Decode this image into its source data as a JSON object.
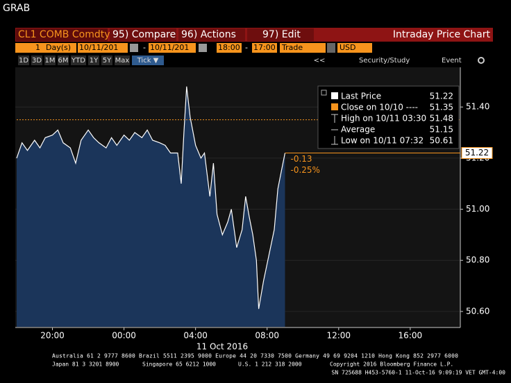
{
  "header": {
    "title": "GRAB"
  },
  "toolbar": {
    "security": "CL1 COMB Comdty",
    "buttons": [
      "95) Compare",
      "96) Actions",
      "97) Edit"
    ],
    "function": "Intraday Price Chart",
    "ranges": [
      "1D",
      "3D",
      "1M",
      "6M",
      "YTD",
      "1Y",
      "5Y",
      "Max",
      "Tick ▼"
    ],
    "tools": [
      "<<",
      "Security/Study",
      "Event"
    ]
  },
  "settings": {
    "period": "1",
    "period_unit": "Day(s)",
    "start_date": "10/11/201",
    "separator": "-",
    "end_date": "10/11/201",
    "start_time": "18:00",
    "end_time": "17:00",
    "event_type": "Trade",
    "currency": "USD"
  },
  "chart_data": {
    "type": "line",
    "x": [
      0,
      0.3,
      0.6,
      1,
      1.3,
      1.6,
      2,
      2.3,
      2.6,
      3,
      3.3,
      3.6,
      4,
      4.3,
      4.6,
      5,
      5.3,
      5.6,
      6,
      6.3,
      6.6,
      7,
      7.3,
      7.6,
      8,
      8.3,
      8.6,
      9,
      9.2,
      9.35,
      9.5,
      9.7,
      10,
      10.3,
      10.5,
      10.8,
      11,
      11.2,
      11.5,
      11.8,
      12,
      12.3,
      12.6,
      12.8,
      13,
      13.2,
      13.4,
      13.53,
      13.8,
      14.1,
      14.4,
      14.6,
      14.8,
      15
    ],
    "series": [
      {
        "name": "Last Price",
        "color": "#ffffff",
        "values": [
          51.2,
          51.26,
          51.23,
          51.27,
          51.24,
          51.28,
          51.29,
          51.31,
          51.26,
          51.24,
          51.18,
          51.27,
          51.31,
          51.28,
          51.26,
          51.24,
          51.28,
          51.25,
          51.29,
          51.27,
          51.3,
          51.28,
          51.31,
          51.27,
          51.26,
          51.25,
          51.22,
          51.22,
          51.1,
          51.3,
          51.48,
          51.36,
          51.25,
          51.2,
          51.22,
          51.05,
          51.18,
          50.98,
          50.9,
          50.95,
          51.0,
          50.85,
          50.92,
          51.05,
          50.97,
          50.9,
          50.8,
          50.61,
          50.72,
          50.82,
          50.92,
          51.08,
          51.15,
          51.22
        ]
      }
    ],
    "area_color": "#1b355a",
    "xlim": [
      0,
      24.8
    ],
    "xticks": [
      {
        "value": 2,
        "label": "20:00"
      },
      {
        "value": 6,
        "label": "00:00"
      },
      {
        "value": 10,
        "label": "04:00"
      },
      {
        "value": 14,
        "label": "08:00"
      },
      {
        "value": 18,
        "label": "12:00"
      },
      {
        "value": 22,
        "label": "16:00"
      }
    ],
    "x_label": "11 Oct 2016",
    "ylim": [
      50.54,
      51.52
    ],
    "yticks": [
      {
        "value": 50.6,
        "label": "50.60"
      },
      {
        "value": 50.8,
        "label": "50.80"
      },
      {
        "value": 51.0,
        "label": "51.00"
      },
      {
        "value": 51.2,
        "label": "51.20"
      },
      {
        "value": 51.4,
        "label": "51.40"
      }
    ],
    "grid": true,
    "stats": [
      {
        "label": "Last Price",
        "value": 51.22,
        "color": "#f7941d"
      },
      {
        "label": "Close on 10/10 ----",
        "value": 51.35,
        "color": "#f7941d"
      },
      {
        "label": "High on 10/11 03:30",
        "value": 51.48
      },
      {
        "label": "Average",
        "value": 51.15
      },
      {
        "label": "Low on 10/11 07:32",
        "value": 50.61
      }
    ],
    "change": -0.13,
    "change_pct": {
      "value": -0.25,
      "label": "-0.25%"
    },
    "annotation_color": "#f7941d"
  },
  "footer": {
    "line1": "Australia 61 2 9777 8600 Brazil 5511 2395 9000 Europe 44 20 7330 7500 Germany 49 69 9204 1210 Hong Kong 852 2977 6000",
    "line2": [
      "Japan 81 3 3201 8900",
      "Singapore 65 6212 1000",
      "U.S. 1 212 318 2000",
      "Copyright 2016 Bloomberg Finance L.P."
    ],
    "line3": "SN 725688 H453-5760-1 11-Oct-16  9:09:19 VET  GMT-4:00"
  }
}
